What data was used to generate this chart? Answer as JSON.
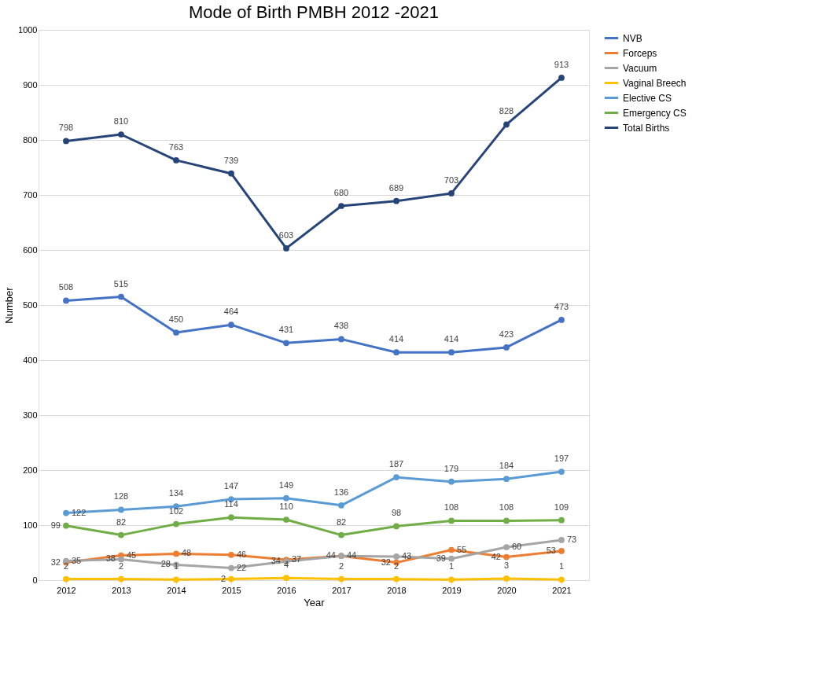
{
  "chart_data": {
    "type": "line",
    "title": "Mode of Birth PMBH 2012 -2021",
    "xlabel": "Year",
    "ylabel": "Number",
    "categories": [
      "2012",
      "2013",
      "2014",
      "2015",
      "2016",
      "2017",
      "2018",
      "2019",
      "2020",
      "2021"
    ],
    "series": [
      {
        "name": "NVB",
        "color": "#4472c4",
        "values": [
          508,
          515,
          450,
          464,
          431,
          438,
          414,
          414,
          423,
          473
        ]
      },
      {
        "name": "Forceps",
        "color": "#ed7d31",
        "values": [
          32,
          45,
          48,
          46,
          37,
          44,
          32,
          55,
          42,
          53
        ]
      },
      {
        "name": "Vacuum",
        "color": "#a5a5a5",
        "values": [
          35,
          38,
          28,
          22,
          34,
          44,
          43,
          39,
          60,
          73
        ]
      },
      {
        "name": "Vaginal  Breech",
        "color": "#ffc000",
        "values": [
          2,
          2,
          1,
          2,
          4,
          2,
          2,
          1,
          3,
          1
        ]
      },
      {
        "name": "Elective CS",
        "color": "#5b9bd5",
        "values": [
          122,
          128,
          134,
          147,
          149,
          136,
          187,
          179,
          184,
          197
        ]
      },
      {
        "name": "Emergency CS",
        "color": "#70ad47",
        "values": [
          99,
          82,
          102,
          114,
          110,
          82,
          98,
          108,
          108,
          109
        ]
      },
      {
        "name": "Total Births",
        "color": "#264478",
        "values": [
          798,
          810,
          763,
          739,
          603,
          680,
          689,
          703,
          828,
          913
        ]
      }
    ],
    "ylim": [
      0,
      1000
    ],
    "yticks": [
      0,
      100,
      200,
      300,
      400,
      500,
      600,
      700,
      800,
      900,
      1000
    ],
    "grid": "y",
    "legend": "right",
    "marker": "circle",
    "line_style": "solid",
    "data_labels": true
  }
}
